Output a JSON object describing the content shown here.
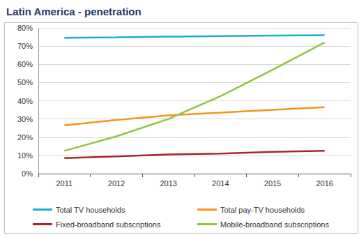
{
  "chart_data": {
    "type": "line",
    "title": "Latin America - penetration",
    "categories": [
      2011,
      2012,
      2013,
      2014,
      2015,
      2016
    ],
    "series": [
      {
        "name": "Total TV households",
        "color": "#1fa9d9",
        "values": [
          74.5,
          74.8,
          75.2,
          75.5,
          75.8,
          76
        ]
      },
      {
        "name": "Total pay-TV households",
        "color": "#f7941d",
        "values": [
          26.5,
          29.5,
          32,
          33.5,
          35,
          36.5
        ]
      },
      {
        "name": "Fixed-broadband subscriptions",
        "color": "#a8262b",
        "values": [
          8.5,
          9.5,
          10.5,
          11,
          12,
          12.5
        ]
      },
      {
        "name": "Mobile-broadband subscriptions",
        "color": "#8dc63f",
        "values": [
          12.5,
          20.5,
          30,
          42.5,
          57,
          72
        ]
      }
    ],
    "ylim": [
      0,
      80
    ],
    "yticks": [
      {
        "value": 0,
        "label": "0%"
      },
      {
        "value": 10,
        "label": "10%"
      },
      {
        "value": 20,
        "label": "20%"
      },
      {
        "value": 30,
        "label": "30%"
      },
      {
        "value": 40,
        "label": "40%"
      },
      {
        "value": 50,
        "label": "50%"
      },
      {
        "value": 60,
        "label": "60%"
      },
      {
        "value": 70,
        "label": "70%"
      },
      {
        "value": 80,
        "label": "80%"
      }
    ],
    "grid": true,
    "legend": "bottom"
  }
}
